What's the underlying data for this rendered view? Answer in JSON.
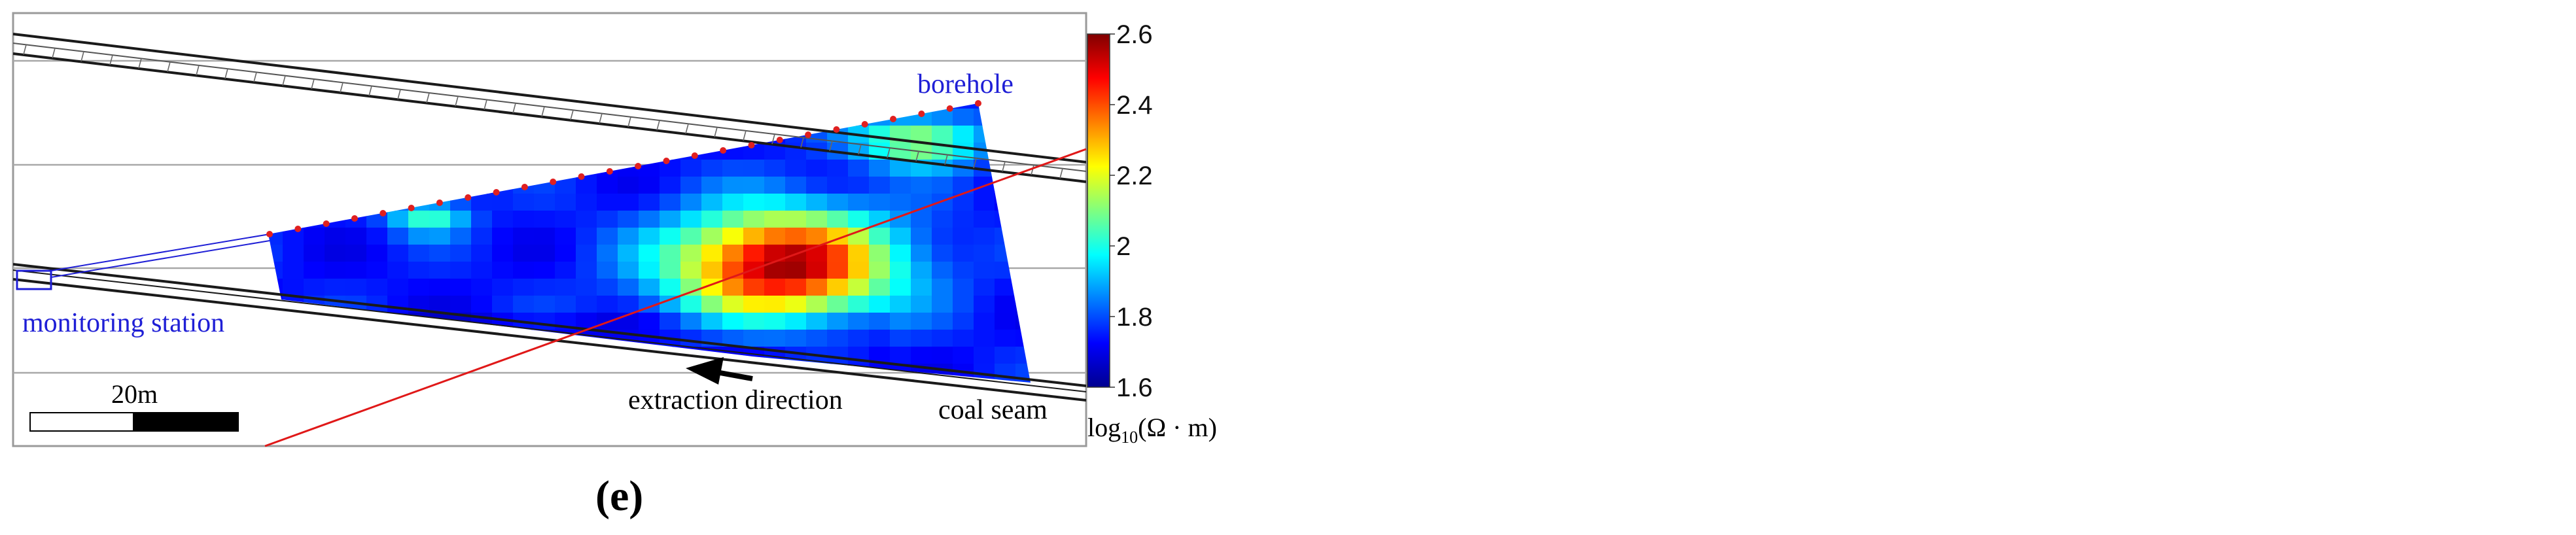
{
  "labels": {
    "borehole": "borehole",
    "monitoring_station": "monitoring station",
    "extraction_direction": "extraction direction",
    "coal_seam": "coal seam",
    "scale_bar": "20m",
    "panel_label": "(e)"
  },
  "colorbar": {
    "ticks": [
      "2.6",
      "2.4",
      "2.2",
      "2",
      "1.8",
      "1.6"
    ],
    "unit": "log10(Ω · m)",
    "unit_base": "log",
    "unit_sub": "10",
    "unit_rest": "(Ω · m)",
    "min": 1.6,
    "max": 2.6,
    "colormap": "jet"
  },
  "colors": {
    "annotation_blue": "#1f1fd6",
    "fault_red": "#e01818",
    "electrode_red": "#e02020",
    "frame_gray": "#9a9a9a"
  }
}
